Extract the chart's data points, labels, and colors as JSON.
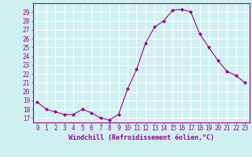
{
  "x": [
    0,
    1,
    2,
    3,
    4,
    5,
    6,
    7,
    8,
    9,
    10,
    11,
    12,
    13,
    14,
    15,
    16,
    17,
    18,
    19,
    20,
    21,
    22,
    23
  ],
  "y": [
    18.8,
    18.0,
    17.7,
    17.4,
    17.4,
    18.0,
    17.6,
    17.0,
    16.8,
    17.4,
    20.3,
    22.5,
    25.5,
    27.3,
    28.0,
    29.2,
    29.3,
    29.0,
    26.5,
    25.0,
    23.5,
    22.3,
    21.8,
    21.0
  ],
  "line_color": "#990099",
  "marker": "D",
  "marker_size": 2.0,
  "bg_color": "#cff0f0",
  "grid_color": "#ffffff",
  "xlabel": "Windchill (Refroidissement éolien,°C)",
  "ylabel": "",
  "title": "",
  "xlim": [
    -0.5,
    23.5
  ],
  "ylim": [
    16.5,
    30.0
  ],
  "yticks": [
    17,
    18,
    19,
    20,
    21,
    22,
    23,
    24,
    25,
    26,
    27,
    28,
    29
  ],
  "xticks": [
    0,
    1,
    2,
    3,
    4,
    5,
    6,
    7,
    8,
    9,
    10,
    11,
    12,
    13,
    14,
    15,
    16,
    17,
    18,
    19,
    20,
    21,
    22,
    23
  ],
  "tick_color": "#990099",
  "label_color": "#990099",
  "spine_color": "#990099",
  "font_size": 5.5,
  "xlabel_font_size": 6.0
}
